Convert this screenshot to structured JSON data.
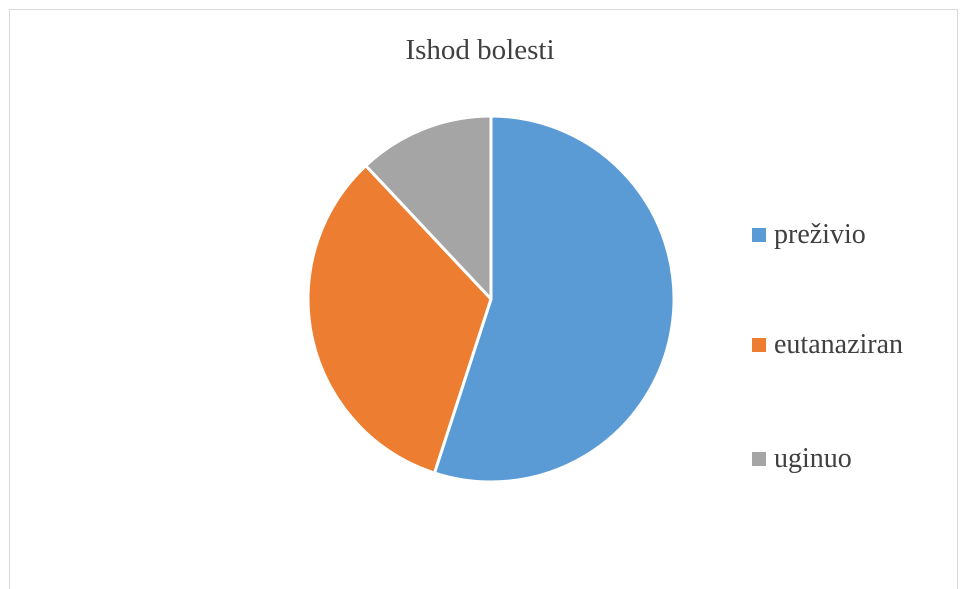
{
  "chart_data": {
    "type": "pie",
    "title": "Ishod bolesti",
    "categories": [
      "preživio",
      "eutanaziran",
      "uginuo"
    ],
    "values": [
      55,
      33,
      12
    ],
    "colors": [
      "#5b9bd5",
      "#ed7d31",
      "#a5a5a5"
    ],
    "start_angle_deg": 0,
    "direction": "clockwise",
    "legend": "right"
  }
}
